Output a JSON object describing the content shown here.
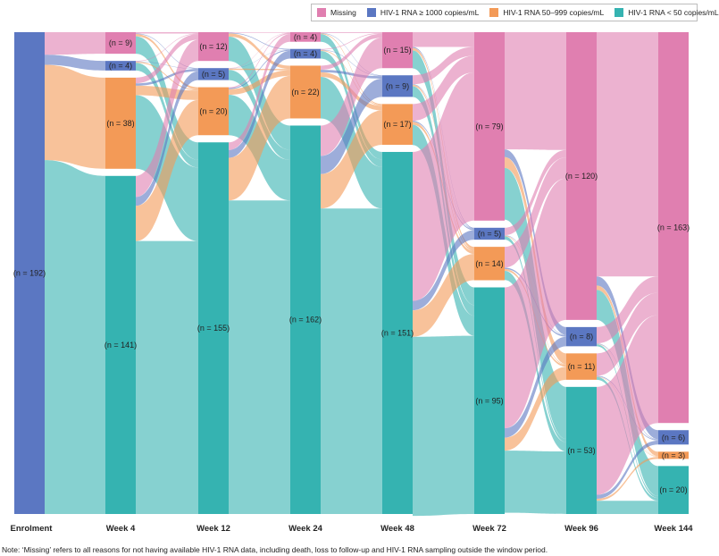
{
  "chart_data": {
    "type": "sankey",
    "title": "",
    "legend": [
      {
        "key": "missing",
        "label": "Missing",
        "color": "#e07fb0"
      },
      {
        "key": "high",
        "label": "HIV-1 RNA ≥ 1000 copies/mL",
        "color": "#5b77c2"
      },
      {
        "key": "mid",
        "label": "HIV-1 RNA 50–999 copies/mL",
        "color": "#f39a57"
      },
      {
        "key": "low",
        "label": "HIV-1 RNA < 50 copies/mL",
        "color": "#35b3b1"
      }
    ],
    "stages": [
      {
        "label": "Enrolment",
        "nodes": [
          {
            "cat": "high",
            "n": 192,
            "label_text": "(n = 192)"
          }
        ]
      },
      {
        "label": "Week 4",
        "nodes": [
          {
            "cat": "missing",
            "n": 9,
            "label_text": "(n = 9)"
          },
          {
            "cat": "high",
            "n": 4,
            "label_text": "(n = 4)"
          },
          {
            "cat": "mid",
            "n": 38,
            "label_text": "(n = 38)"
          },
          {
            "cat": "low",
            "n": 141,
            "label_text": "(n = 141)"
          }
        ]
      },
      {
        "label": "Week 12",
        "nodes": [
          {
            "cat": "missing",
            "n": 12,
            "label_text": "(n = 12)"
          },
          {
            "cat": "high",
            "n": 5,
            "label_text": "(n = 5)"
          },
          {
            "cat": "mid",
            "n": 20,
            "label_text": "(n = 20)"
          },
          {
            "cat": "low",
            "n": 155,
            "label_text": "(n = 155)"
          }
        ]
      },
      {
        "label": "Week 24",
        "nodes": [
          {
            "cat": "missing",
            "n": 4,
            "label_text": "(n = 4)"
          },
          {
            "cat": "high",
            "n": 4,
            "label_text": "(n = 4)"
          },
          {
            "cat": "mid",
            "n": 22,
            "label_text": "(n = 22)"
          },
          {
            "cat": "low",
            "n": 162,
            "label_text": "(n = 162)"
          }
        ]
      },
      {
        "label": "Week 48",
        "nodes": [
          {
            "cat": "missing",
            "n": 15,
            "label_text": "(n = 15)"
          },
          {
            "cat": "high",
            "n": 9,
            "label_text": "(n = 9)"
          },
          {
            "cat": "mid",
            "n": 17,
            "label_text": "(n = 17)"
          },
          {
            "cat": "low",
            "n": 151,
            "label_text": "(n = 151)"
          }
        ]
      },
      {
        "label": "Week 72",
        "nodes": [
          {
            "cat": "missing",
            "n": 79,
            "label_text": "(n = 79)"
          },
          {
            "cat": "high",
            "n": 5,
            "label_text": "(n = 5)"
          },
          {
            "cat": "mid",
            "n": 14,
            "label_text": "(n = 14)"
          },
          {
            "cat": "low",
            "n": 95,
            "label_text": "(n = 95)"
          }
        ]
      },
      {
        "label": "Week 96",
        "nodes": [
          {
            "cat": "missing",
            "n": 120,
            "label_text": "(n = 120)"
          },
          {
            "cat": "high",
            "n": 8,
            "label_text": "(n = 8)"
          },
          {
            "cat": "mid",
            "n": 11,
            "label_text": "(n = 11)"
          },
          {
            "cat": "low",
            "n": 53,
            "label_text": "(n = 53)"
          }
        ]
      },
      {
        "label": "Week 144",
        "nodes": [
          {
            "cat": "missing",
            "n": 163,
            "label_text": "(n = 163)"
          },
          {
            "cat": "high",
            "n": 6,
            "label_text": "(n = 6)"
          },
          {
            "cat": "mid",
            "n": 3,
            "label_text": "(n = 3)"
          },
          {
            "cat": "low",
            "n": 20,
            "label_text": "(n = 20)"
          }
        ]
      }
    ]
  },
  "note": "Note: ‘Missing’ refers to all reasons for not having available HIV-1 RNA data, including death, loss to follow-up and HIV-1 RNA sampling outside the window period."
}
